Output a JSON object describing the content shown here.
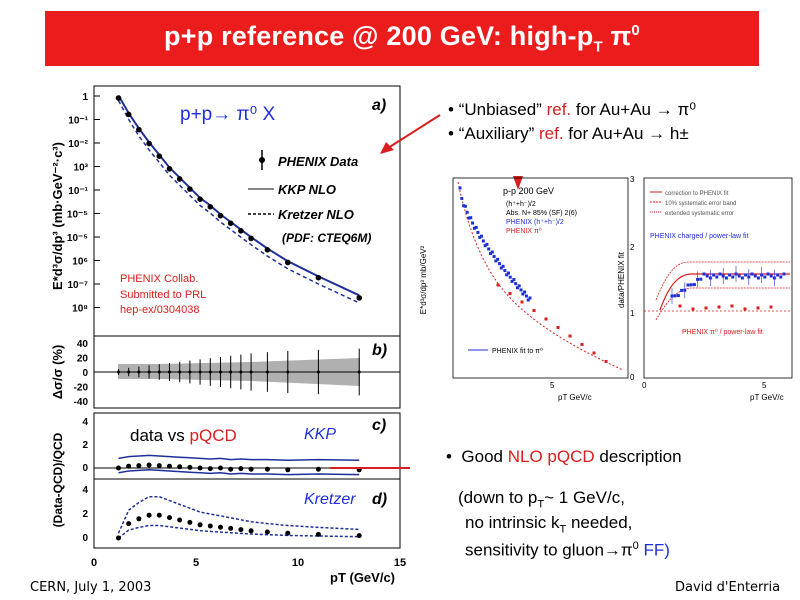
{
  "slide": {
    "title_pre": "p+p reference @ 200 GeV: high-p",
    "title_sub": "T",
    "title_mid": " π",
    "title_sup": "0",
    "footer_left": "CERN, July 1, 2003",
    "footer_right": "David d'Enterria"
  },
  "bullets": [
    {
      "q": "“Unbiased”",
      "ref": "ref.",
      "rest": "for Au+Au → π⁰"
    },
    {
      "q": "“Auxiliary”",
      "ref": "ref.",
      "rest": "for Au+Au → h±"
    }
  ],
  "nlo_bullet": {
    "pre": "Good ",
    "red": "NLO pQCD",
    "post": " description"
  },
  "details": {
    "l1_a": "(down to p",
    "l1_sub": "T",
    "l1_b": "~ 1 GeV/c,",
    "l2_a": "no intrinsic k",
    "l2_sub": "T",
    "l2_b": " needed,",
    "l3_a": "sensitivity to gluon→π",
    "l3_sup": "0",
    "l3_b": " FF)"
  },
  "main_plot": {
    "process": "p+p→ π⁰ X",
    "ylabel_top": "E*d³σ/dp³ (mb·GeV⁻²·c³)",
    "panel_a": "a)",
    "panel_b": "b)",
    "panel_c": "c)",
    "panel_d": "d)",
    "legend": [
      "PHENIX Data",
      "KKP NLO",
      "Kretzer NLO"
    ],
    "pdf_note": "(PDF: CTEQ6M)",
    "collab": [
      "PHENIX Collab.",
      "Submitted to PRL",
      "hep-ex/0304038"
    ],
    "yticks_top": [
      "1",
      "10⁻¹",
      "10⁻²",
      "10³",
      "10⁻¹",
      "10⁻⁵",
      "10⁻⁵",
      "10⁶",
      "10⁻⁷",
      "10⁸"
    ],
    "ylabel_mid": "Δσ/σ (%)",
    "yticks_mid": [
      "40",
      "20",
      "0",
      "-20",
      "-40"
    ],
    "ylabel_bot": "(Data-QCD)/QCD",
    "yticks_c": [
      "4",
      "2",
      "0"
    ],
    "yticks_d": [
      "4",
      "2",
      "0"
    ],
    "data_vs": "data vs ",
    "pqcd": "pQCD",
    "kkp": "KKP",
    "kretzer": "Kretzer",
    "xticks": [
      "0",
      "5",
      "10",
      "15"
    ],
    "xlabel": "pT (GeV/c)"
  },
  "chart_data": {
    "type": "scatter",
    "x": [
      1.2,
      1.7,
      2.2,
      2.7,
      3.2,
      3.7,
      4.2,
      4.7,
      5.2,
      5.7,
      6.2,
      6.7,
      7.2,
      7.7,
      8.5,
      9.5,
      11.0,
      13.0
    ],
    "series": [
      {
        "name": "PHENIX Data",
        "log10_values": [
          0.3,
          -0.35,
          -0.95,
          -1.5,
          -2.0,
          -2.5,
          -2.9,
          -3.3,
          -3.7,
          -4.0,
          -4.35,
          -4.65,
          -4.95,
          -5.25,
          -5.7,
          -6.2,
          -6.8,
          -7.6
        ]
      },
      {
        "name": "KKP NLO",
        "log10_values": [
          0.4,
          -0.3,
          -0.9,
          -1.45,
          -1.95,
          -2.45,
          -2.85,
          -3.25,
          -3.65,
          -3.95,
          -4.3,
          -4.6,
          -4.9,
          -5.2,
          -5.65,
          -6.15,
          -6.75,
          -7.5
        ]
      },
      {
        "name": "Kretzer NLO",
        "log10_values": [
          0.2,
          -0.55,
          -1.2,
          -1.75,
          -2.25,
          -2.75,
          -3.15,
          -3.55,
          -3.95,
          -4.25,
          -4.6,
          -4.9,
          -5.2,
          -5.5,
          -5.95,
          -6.45,
          -7.05,
          -7.8
        ]
      }
    ],
    "ratio_kkp": [
      0.0,
      0.15,
      0.2,
      0.25,
      0.2,
      0.15,
      0.1,
      0.05,
      0.0,
      -0.05,
      0.0,
      -0.1,
      -0.05,
      -0.1,
      -0.1,
      -0.15,
      -0.1,
      -0.15
    ],
    "ratio_kretzer": [
      0.0,
      1.2,
      1.6,
      1.9,
      1.9,
      1.7,
      1.5,
      1.3,
      1.1,
      1.0,
      0.9,
      0.8,
      0.7,
      0.6,
      0.5,
      0.4,
      0.3,
      0.2
    ],
    "xlim": [
      0,
      15
    ],
    "xlabel": "pT (GeV/c)"
  },
  "right_plot1": {
    "title": "p-p 200 GeV",
    "legend": [
      "(h⁺+h⁻)/2",
      "Abs. N+ 85% (SF) 2(6)",
      "PHENIX (h⁺+h⁻)/2",
      "PHENIX π⁰"
    ],
    "fit_label": "PHENIX fit to π⁰",
    "ylabel": "E*d³σ/dp³ mb/GeV²",
    "xlabel": "pT GeV/c",
    "xtick": "5"
  },
  "right_plot2": {
    "ylabel": "data/PHENIX fit",
    "yticks": [
      "3",
      "2",
      "1",
      "0"
    ],
    "legend": [
      "correction to PHENIX fit",
      "10% systematic error band",
      "extended systematic error"
    ],
    "charged_label": "PHENIX charged / power-law fit",
    "pi0_label": "PHENIX π⁰ / power-law fit",
    "xticks": [
      "0",
      "5"
    ],
    "xlabel": "pT GeV/c"
  }
}
